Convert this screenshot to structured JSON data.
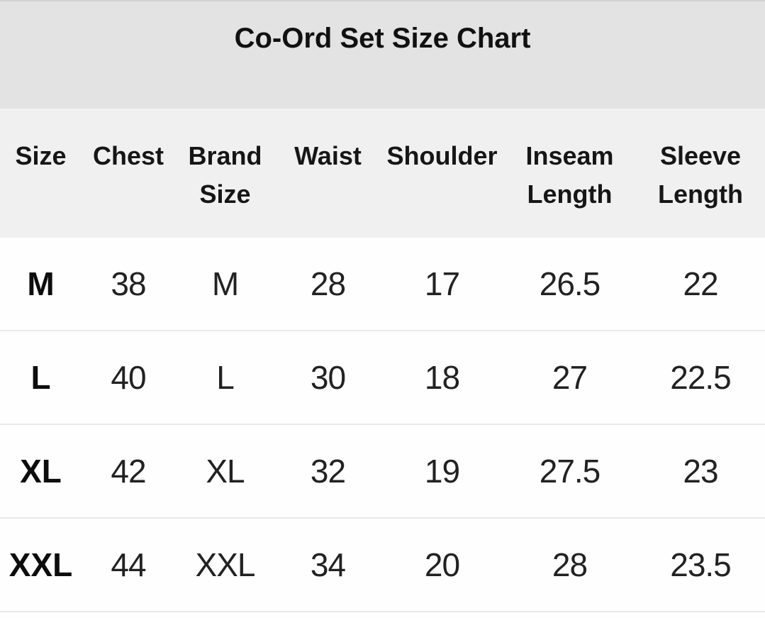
{
  "title": "Co-Ord Set Size Chart",
  "chart_data": {
    "type": "table",
    "title": "Co-Ord Set Size Chart",
    "columns": [
      "Size",
      "Chest",
      "Brand Size",
      "Waist",
      "Shoulder",
      "Inseam Length",
      "Sleeve Length"
    ],
    "rows": [
      [
        "M",
        "38",
        "M",
        "28",
        "17",
        "26.5",
        "22"
      ],
      [
        "L",
        "40",
        "L",
        "30",
        "18",
        "27",
        "22.5"
      ],
      [
        "XL",
        "42",
        "XL",
        "32",
        "19",
        "27.5",
        "23"
      ],
      [
        "XXL",
        "44",
        "XXL",
        "34",
        "20",
        "28",
        "23.5"
      ]
    ]
  },
  "colors": {
    "title_band_bg": "#e3e3e3",
    "header_band_bg": "#f0f0f0",
    "row_bg": "#fefefe",
    "separator": "#e9e9e9",
    "text": "#161616"
  }
}
